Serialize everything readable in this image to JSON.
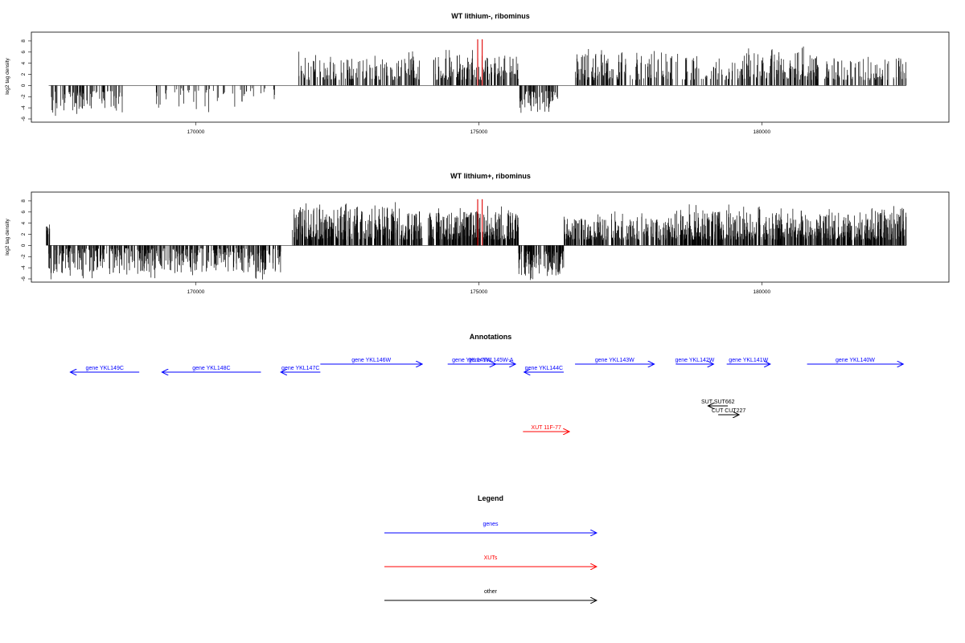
{
  "chart_data": [
    {
      "type": "bar",
      "title": "WT lithium-, ribominus",
      "ylabel": "log2 tag density",
      "xlim": [
        167250,
        183150
      ],
      "ylim": [
        -6,
        9
      ],
      "yticks": [
        -6,
        -4,
        -2,
        0,
        2,
        4,
        6,
        8
      ],
      "xticks": [
        170000,
        175000,
        180000
      ],
      "grid": false,
      "highlight_color": "#e00000",
      "highlight_bars": [
        {
          "x": 174980,
          "value": 8.3
        },
        {
          "x": 175060,
          "value": 8.3
        }
      ],
      "segments": [
        {
          "start": 167400,
          "end": 168700,
          "sign": -1,
          "min": 1.0,
          "max": 5.0,
          "density": 0.9
        },
        {
          "start": 169300,
          "end": 171400,
          "sign": -1,
          "min": 0.5,
          "max": 4.0,
          "density": 0.35
        },
        {
          "start": 171800,
          "end": 174000,
          "sign": 1,
          "min": 1.0,
          "max": 5.0,
          "density": 1.0
        },
        {
          "start": 174200,
          "end": 175700,
          "sign": 1,
          "min": 1.0,
          "max": 5.5,
          "density": 1.4
        },
        {
          "start": 175700,
          "end": 176400,
          "sign": -1,
          "min": 1.0,
          "max": 5.0,
          "density": 1.3
        },
        {
          "start": 176700,
          "end": 178900,
          "sign": 1,
          "min": 1.0,
          "max": 6.0,
          "density": 1.0
        },
        {
          "start": 178900,
          "end": 179700,
          "sign": 1,
          "min": 1.0,
          "max": 5.5,
          "density": 0.7
        },
        {
          "start": 179600,
          "end": 181000,
          "sign": 1,
          "min": 1.0,
          "max": 6.0,
          "density": 1.3
        },
        {
          "start": 181100,
          "end": 182550,
          "sign": 1,
          "min": 1.0,
          "max": 5.0,
          "density": 0.9
        }
      ]
    },
    {
      "type": "bar",
      "title": "WT lithium+, ribominus",
      "ylabel": "log2 tag density",
      "xlim": [
        167250,
        183150
      ],
      "ylim": [
        -6,
        9
      ],
      "yticks": [
        -6,
        -4,
        -2,
        0,
        2,
        4,
        6,
        8
      ],
      "xticks": [
        170000,
        175000,
        180000
      ],
      "grid": false,
      "highlight_color": "#e00000",
      "highlight_bars": [
        {
          "x": 174980,
          "value": 8.3
        },
        {
          "x": 175060,
          "value": 8.3
        }
      ],
      "segments": [
        {
          "start": 167350,
          "end": 167420,
          "sign": 1,
          "min": 2.0,
          "max": 4.5,
          "density": 2.0
        },
        {
          "start": 167400,
          "end": 171500,
          "sign": -1,
          "min": 0.5,
          "max": 5.0,
          "density": 1.6
        },
        {
          "start": 171700,
          "end": 174000,
          "sign": 1,
          "min": 1.0,
          "max": 7.0,
          "density": 2.2
        },
        {
          "start": 174100,
          "end": 175700,
          "sign": 1,
          "min": 1.0,
          "max": 6.0,
          "density": 2.6
        },
        {
          "start": 175700,
          "end": 176500,
          "sign": -1,
          "min": 1.0,
          "max": 5.5,
          "density": 2.2
        },
        {
          "start": 176500,
          "end": 178400,
          "sign": 1,
          "min": 1.0,
          "max": 5.0,
          "density": 1.8
        },
        {
          "start": 178400,
          "end": 179700,
          "sign": 1,
          "min": 1.0,
          "max": 6.5,
          "density": 2.4
        },
        {
          "start": 179700,
          "end": 182550,
          "sign": 1,
          "min": 1.0,
          "max": 6.0,
          "density": 2.2
        }
      ]
    }
  ],
  "annotations": {
    "title": "Annotations",
    "colors": {
      "gene": "#0000ff",
      "xut": "#ff0000",
      "other": "#000000"
    },
    "features": [
      {
        "label": "gene YKL149C",
        "start": 167780,
        "end": 169000,
        "strand": "-",
        "kind": "gene",
        "row": 1
      },
      {
        "label": "gene YKL148C",
        "start": 169400,
        "end": 171150,
        "strand": "-",
        "kind": "gene",
        "row": 1
      },
      {
        "label": "gene YKL147C",
        "start": 171500,
        "end": 172200,
        "strand": "-",
        "kind": "gene",
        "row": 1
      },
      {
        "label": "gene YKL146W",
        "start": 172200,
        "end": 174000,
        "strand": "+",
        "kind": "gene",
        "row": 0
      },
      {
        "label": "gene YKL145W",
        "start": 174450,
        "end": 175300,
        "strand": "+",
        "kind": "gene",
        "row": 0
      },
      {
        "label": "gene YKL145W-A",
        "start": 174780,
        "end": 175650,
        "strand": "+",
        "kind": "gene",
        "row": 0
      },
      {
        "label": "gene YKL144C",
        "start": 175800,
        "end": 176500,
        "strand": "-",
        "kind": "gene",
        "row": 1
      },
      {
        "label": "gene YKL143W",
        "start": 176700,
        "end": 178100,
        "strand": "+",
        "kind": "gene",
        "row": 0
      },
      {
        "label": "gene YKL142W",
        "start": 178480,
        "end": 179150,
        "strand": "+",
        "kind": "gene",
        "row": 0
      },
      {
        "label": "gene YKL141W",
        "start": 179380,
        "end": 180150,
        "strand": "+",
        "kind": "gene",
        "row": 0
      },
      {
        "label": "gene YKL140W",
        "start": 180800,
        "end": 182500,
        "strand": "+",
        "kind": "gene",
        "row": 0
      },
      {
        "label": "SUT SUT662",
        "start": 179050,
        "end": 179400,
        "strand": "-",
        "kind": "other",
        "row": 2
      },
      {
        "label": "CUT CUT227",
        "start": 179230,
        "end": 179600,
        "strand": "+",
        "kind": "other",
        "row": 3
      },
      {
        "label": "XUT 11F-77",
        "start": 175780,
        "end": 176600,
        "strand": "+",
        "kind": "xut",
        "row": 4
      }
    ]
  },
  "legend": {
    "title": "Legend",
    "items": [
      {
        "label": "genes",
        "kind": "gene"
      },
      {
        "label": "XUTs",
        "kind": "xut"
      },
      {
        "label": "other",
        "kind": "other"
      }
    ]
  }
}
